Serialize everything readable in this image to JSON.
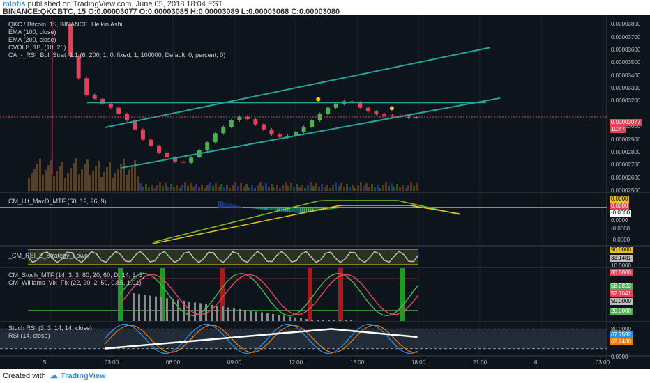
{
  "header": {
    "author": "mlotis",
    "published_text": "published on TradingView.com, June 05, 2018 18:04 EST",
    "symbol_line": "BINANCE:QKCBTC, 15 O:0.00003077 O:0.00003085 H:0.00003089 L:0.00003068 C:0.00003080"
  },
  "footer": {
    "created_with": "Created with",
    "brand": "TradingView"
  },
  "legends": {
    "main": [
      "QKC / Bitcoin, 15, BINANCE, Heikin Ashi",
      "EMA (100, close)",
      "EMA (200, close)",
      "CVOLB, 1B, (10, 20)",
      "CA_-_RSI_Bol_Strat_1.1 (6, 200, 1, 0, fixed, 1, 100000, Default, 0, percent, 0)"
    ],
    "macd": [
      "CM_Ult_MacD_MTF (60, 12, 26, 9)"
    ],
    "rsi2": [
      "_CM_RSI_2_Strategy_Lower"
    ],
    "stoch": [
      "CM_Stoch_MTF (14, 3, 3, 80, 20, 60, D, 14, 3, 3)",
      "CM_Williams_Vix_Fix (22, 20, 2, 50, 0.85, 1.01)"
    ],
    "stochrsi": [
      "Stoch RSI (3, 3, 14, 14, close)",
      "RSI (14, close)"
    ]
  },
  "price_axis": [
    "0.00003800",
    "0.00003700",
    "0.00003600",
    "0.00003500",
    "0.00003400",
    "0.00003300",
    "0.00003200",
    "0.00003077",
    "0.00003000",
    "0.00002900",
    "0.00002800",
    "0.00002700",
    "0.00002600",
    "0.00002500"
  ],
  "price_badges": {
    "last": "0.00003077",
    "countdown": "10:47"
  },
  "macd_axis": {
    "tick_top": "0.0000",
    "tick_mid": "-0.0000",
    "tick_low": "-0.0000",
    "badge_1": "0.0000",
    "badge_2": "0.0000",
    "badge_3": "-0.0000"
  },
  "rsi2_axis": {
    "badge_high": "90.0000",
    "badge_value": "33.1481",
    "tick_low": "10.0000"
  },
  "stoch_axis": {
    "badge_80": "80.0000",
    "badge_1": "58.2823",
    "badge_2": "52.7041",
    "badge_3": "50.0000",
    "badge_20": "20.0000"
  },
  "stochrsi_axis": {
    "tick_80": "80.0000",
    "badge_1": "67.7592",
    "badge_2": "62.2430",
    "tick_0": "0.0000"
  },
  "time_axis": [
    "5",
    "03:00",
    "06:00",
    "09:00",
    "12:00",
    "15:00",
    "18:00",
    "21:00",
    "6",
    "03:00"
  ],
  "colors": {
    "bg": "#0e141c",
    "up": "#4caf50",
    "down": "#e0435a",
    "channel": "#26a69a",
    "yellow_dot": "#f5d000",
    "macd_line": "#7fbf2a",
    "macd_signal": "#e6c31e",
    "stoch_k": "#4caf50",
    "stoch_d": "#e0435a",
    "rsi_white": "#ffffff",
    "stoch_rsi_k": "#2196f3",
    "stoch_rsi_d": "#f57c00"
  },
  "chart_data": [
    {
      "type": "candlestick",
      "title": "QKC / Bitcoin, 15, BINANCE, Heikin Ashi",
      "x_range": [
        "05 00:00",
        "06 03:00"
      ],
      "ylim": [
        2.5e-05,
        3.85e-05
      ],
      "closes": [
        3.8e-05,
        3.55e-05,
        3.38e-05,
        3.25e-05,
        3.22e-05,
        3.18e-05,
        3.15e-05,
        3.1e-05,
        3.05e-05,
        2.98e-05,
        2.9e-05,
        2.85e-05,
        2.8e-05,
        2.76e-05,
        2.73e-05,
        2.72e-05,
        2.76e-05,
        2.82e-05,
        2.88e-05,
        2.95e-05,
        3e-05,
        3.05e-05,
        3.08e-05,
        3.06e-05,
        3.02e-05,
        2.98e-05,
        2.94e-05,
        2.92e-05,
        2.93e-05,
        2.96e-05,
        3e-05,
        3.05e-05,
        3.1e-05,
        3.15e-05,
        3.18e-05,
        3.2e-05,
        3.19e-05,
        3.15e-05,
        3.12e-05,
        3.1e-05,
        3.09e-05,
        3.085e-05,
        3.08e-05,
        3.075e-05,
        3.077e-05
      ],
      "channel": {
        "upper_from": [
          "05 02:40",
          2.995e-05
        ],
        "upper_to": [
          "05 21:30",
          3.62e-05
        ],
        "lower_from": [
          "05 03:30",
          2.68e-05
        ],
        "lower_to": [
          "05 22:00",
          3.225e-05
        ],
        "horizontal": 3.19e-05
      },
      "last": 3.077e-05
    },
    {
      "type": "line",
      "name": "CM_Ult_MacD_MTF (60, 12, 26, 9)",
      "zero_line": 0
    },
    {
      "type": "line",
      "name": "_CM_RSI_2_Strategy_Lower",
      "upper": 90,
      "lower": 10,
      "last": 33.1481
    },
    {
      "type": "line",
      "name": "CM_Stoch_MTF",
      "levels": [
        80,
        50,
        20
      ],
      "last_k": 58.2823,
      "last_d": 52.7041
    },
    {
      "type": "line",
      "name": "Stoch RSI (3, 3, 14, 14, close)",
      "levels": [
        80,
        20
      ],
      "last_k": 67.7592,
      "last_d": 62.243
    }
  ]
}
